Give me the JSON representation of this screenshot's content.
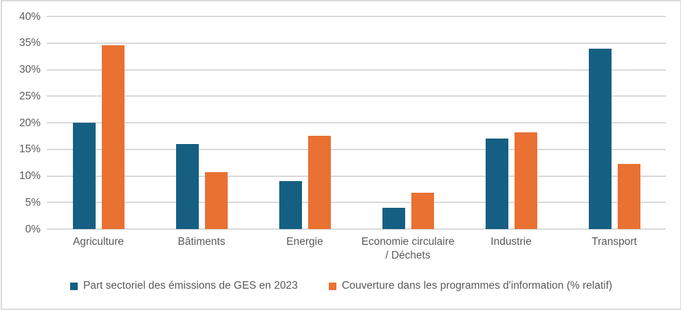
{
  "chart_data": {
    "type": "bar",
    "categories": [
      "Agriculture",
      "Bâtiments",
      "Energie",
      "Economie circulaire\n/ Déchets",
      "Industrie",
      "Transport"
    ],
    "series": [
      {
        "name": "Part sectoriel des émissions de GES en 2023",
        "color": "#156082",
        "values": [
          20,
          16,
          9,
          4,
          17,
          34
        ]
      },
      {
        "name": "Couverture dans les programmes d'information (% relatif)",
        "color": "#E97132",
        "values": [
          34.6,
          10.7,
          17.5,
          6.8,
          18.2,
          12.2
        ]
      }
    ],
    "y_axis": {
      "min": 0,
      "max": 40,
      "step": 5,
      "tick_labels": [
        "0%",
        "5%",
        "10%",
        "15%",
        "20%",
        "25%",
        "30%",
        "35%",
        "40%"
      ]
    },
    "title": "",
    "xlabel": "",
    "ylabel": "",
    "grid": true,
    "legend_position": "bottom"
  },
  "styles": {
    "background": "#FFFFFF",
    "border_color": "#D9D9D9",
    "grid_color": "#D9D9D9",
    "text_color": "#595959",
    "series1_color": "#156082",
    "series2_color": "#E97132"
  }
}
